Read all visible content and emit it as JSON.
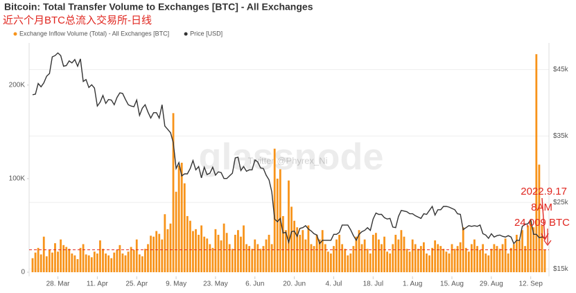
{
  "chart_data": {
    "type": "bar",
    "title": "Bitcoin: Total Transfer Volume to Exchanges [BTC] - All Exchanges",
    "subtitle": "近六个月BTC总流入交易所-日线",
    "watermark": "glassnode",
    "watermark_credit": "Twitter @Phyrex_Ni",
    "categories": [
      null,
      null,
      null,
      null,
      null,
      null,
      null,
      null,
      null,
      "28. Mar",
      null,
      null,
      null,
      null,
      null,
      null,
      null,
      null,
      null,
      null,
      null,
      null,
      null,
      "11. Apr",
      null,
      null,
      null,
      null,
      null,
      null,
      null,
      null,
      null,
      null,
      null,
      null,
      null,
      "25. Apr",
      null,
      null,
      null,
      null,
      null,
      null,
      null,
      null,
      null,
      null,
      null,
      null,
      null,
      "9. May",
      null,
      null,
      null,
      null,
      null,
      null,
      null,
      null,
      null,
      null,
      null,
      null,
      null,
      "23. May",
      null,
      null,
      null,
      null,
      null,
      null,
      null,
      null,
      null,
      null,
      null,
      null,
      null,
      "6. Jun",
      null,
      null,
      null,
      null,
      null,
      null,
      null,
      null,
      null,
      null,
      null,
      null,
      null,
      "20. Jun",
      null,
      null,
      null,
      null,
      null,
      null,
      null,
      null,
      null,
      null,
      null,
      null,
      null,
      "4. Jul",
      null,
      null,
      null,
      null,
      null,
      null,
      null,
      null,
      null,
      null,
      null,
      null,
      null,
      "18. Jul",
      null,
      null,
      null,
      null,
      null,
      null,
      null,
      null,
      null,
      null,
      null,
      null,
      null,
      "1. Aug",
      null,
      null,
      null,
      null,
      null,
      null,
      null,
      null,
      null,
      null,
      null,
      null,
      null,
      "15. Aug",
      null,
      null,
      null,
      null,
      null,
      null,
      null,
      null,
      null,
      null,
      null,
      null,
      null,
      "29. Aug",
      null,
      null,
      null,
      null,
      null,
      null,
      null,
      null,
      null,
      null,
      null,
      null,
      null,
      "12. Sep",
      null,
      null,
      null,
      null,
      null
    ],
    "series": [
      {
        "name": "Exchange Inflow Volume (Total) - All Exchanges [BTC]",
        "type": "bar",
        "axis": "y",
        "color": "#f7931a",
        "values": [
          15000,
          21000,
          26000,
          19000,
          38000,
          17000,
          24000,
          21000,
          31000,
          22000,
          35000,
          29000,
          27000,
          25000,
          20000,
          18000,
          14000,
          26000,
          30000,
          19000,
          18000,
          16000,
          22000,
          20000,
          34000,
          25000,
          20000,
          18000,
          15000,
          21000,
          24000,
          29000,
          20000,
          18000,
          22000,
          27000,
          24000,
          35000,
          19000,
          17000,
          25000,
          30000,
          39000,
          38000,
          44000,
          41000,
          35000,
          62000,
          46000,
          52000,
          170000,
          86000,
          114000,
          117000,
          95000,
          60000,
          55000,
          44000,
          46000,
          40000,
          50000,
          38000,
          36000,
          30000,
          26000,
          46000,
          40000,
          34000,
          52000,
          42000,
          30000,
          25000,
          40000,
          45000,
          38000,
          50000,
          30000,
          28000,
          25000,
          35000,
          30000,
          25000,
          28000,
          35000,
          40000,
          30000,
          132000,
          100000,
          110000,
          60000,
          45000,
          98000,
          70000,
          55000,
          48000,
          40000,
          45000,
          35000,
          50000,
          30000,
          28000,
          40000,
          35000,
          45000,
          30000,
          22000,
          20000,
          28000,
          35000,
          40000,
          30000,
          25000,
          18000,
          20000,
          28000,
          38000,
          45000,
          30000,
          35000,
          25000,
          20000,
          40000,
          42000,
          35000,
          30000,
          38000,
          22000,
          20000,
          30000,
          40000,
          35000,
          45000,
          38000,
          25000,
          22000,
          35000,
          30000,
          25000,
          28000,
          32000,
          20000,
          18000,
          26000,
          34000,
          30000,
          28000,
          25000,
          22000,
          20000,
          30000,
          25000,
          28000,
          32000,
          48000,
          26000,
          22000,
          30000,
          35000,
          28000,
          24000,
          30000,
          20000,
          18000,
          25000,
          30000,
          28000,
          25000,
          30000,
          36000,
          20000,
          26000,
          30000,
          40000,
          34000,
          45000,
          28000,
          50000,
          55000,
          48000,
          233000,
          115000,
          50000,
          24009
        ]
      },
      {
        "name": "Price [USD]",
        "type": "line",
        "axis": "y2",
        "color": "#333333",
        "values": [
          41200,
          41300,
          42900,
          42400,
          43000,
          44000,
          44400,
          46900,
          47100,
          47500,
          47100,
          45500,
          45600,
          46300,
          46000,
          46500,
          45500,
          46600,
          43200,
          43500,
          42300,
          42700,
          42200,
          39500,
          40100,
          41100,
          39900,
          40500,
          40400,
          39700,
          40800,
          41500,
          41400,
          40500,
          39700,
          39500,
          39400,
          40400,
          38100,
          39200,
          39700,
          38600,
          37700,
          38500,
          38500,
          37700,
          39700,
          36500,
          36000,
          35500,
          34000,
          30100,
          31000,
          29000,
          29300,
          29300,
          30100,
          31300,
          29900,
          30400,
          28700,
          30300,
          29200,
          29400,
          30300,
          29100,
          29600,
          29500,
          28600,
          28600,
          29000,
          29400,
          31700,
          31800,
          29800,
          30400,
          29700,
          29900,
          29900,
          31400,
          31100,
          30200,
          30100,
          29100,
          28400,
          26600,
          22500,
          22100,
          22600,
          20400,
          20500,
          19000,
          20600,
          20700,
          19900,
          21100,
          21200,
          21500,
          21000,
          20700,
          20300,
          20100,
          18800,
          19300,
          19300,
          19300,
          19300,
          20200,
          20200,
          20500,
          21600,
          21600,
          21600,
          20900,
          20000,
          19300,
          20200,
          20600,
          20800,
          21200,
          20800,
          22500,
          23400,
          23200,
          23200,
          22700,
          22500,
          22600,
          21300,
          21200,
          22900,
          23800,
          23700,
          23600,
          23300,
          23300,
          23000,
          22800,
          22600,
          23300,
          23200,
          23800,
          24400,
          23100,
          23900,
          23900,
          24400,
          24400,
          24300,
          24100,
          23900,
          23300,
          23200,
          20900,
          21200,
          21500,
          21400,
          21500,
          21400,
          21600,
          20300,
          20100,
          19600,
          20300,
          19800,
          20000,
          20100,
          19900,
          19800,
          20000,
          19800,
          18800,
          19300,
          19300,
          21400,
          21700,
          21800,
          22400,
          20200,
          20200,
          19700,
          19800,
          19700
        ]
      }
    ],
    "ylim": [
      0,
      245000
    ],
    "yticks": [
      0,
      {
        "value": 100000,
        "label": "100K"
      },
      {
        "value": 200000,
        "label": "200K"
      }
    ],
    "y2lim": [
      14500,
      49000
    ],
    "y2ticks": [
      {
        "value": 15000,
        "label": "$15k"
      },
      {
        "value": 25000,
        "label": "$25k"
      },
      {
        "value": 35000,
        "label": "$35k"
      },
      {
        "value": 45000,
        "label": "$45k"
      }
    ],
    "grid": true,
    "annotation": {
      "date": "2022.9.17",
      "time": "8AM",
      "level": {
        "value": 24009,
        "label": "24,009 BTC"
      },
      "color": "#e0261f"
    }
  }
}
